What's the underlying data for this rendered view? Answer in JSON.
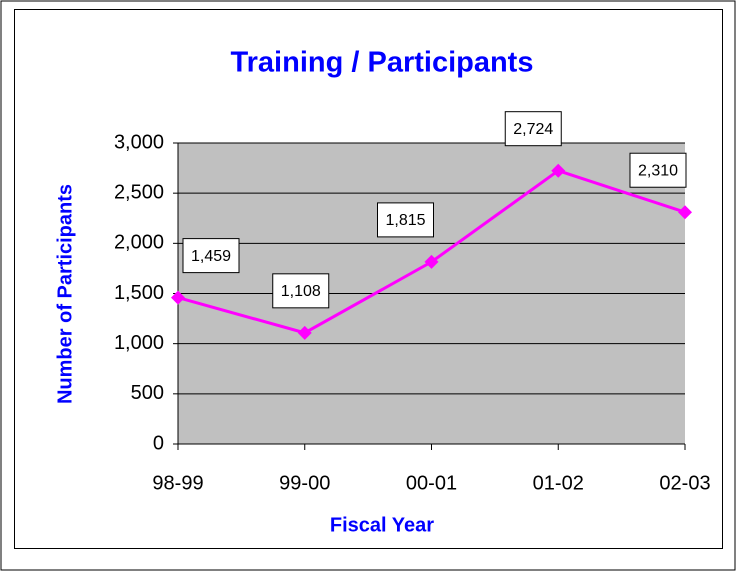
{
  "chart_data": {
    "type": "line",
    "title": "Training / Participants",
    "x_label": "Fiscal Year",
    "y_label": "Number of Participants",
    "categories": [
      "98-99",
      "99-00",
      "00-01",
      "01-02",
      "02-03"
    ],
    "series": [
      {
        "name": "Participants",
        "color": "#ff00ff",
        "values": [
          1459,
          1108,
          1815,
          2724,
          2310
        ],
        "value_labels": [
          "1,459",
          "1,108",
          "1,815",
          "2,724",
          "2,310"
        ]
      }
    ],
    "ylim": [
      0,
      3000
    ],
    "yticks": [
      0,
      500,
      {
        "value": 1000,
        "label": "1,000"
      },
      {
        "value": 1500,
        "label": "1,500"
      },
      {
        "value": 2000,
        "label": "2,000"
      },
      {
        "value": 2500,
        "label": "2,500"
      },
      {
        "value": 3000,
        "label": "3,000"
      }
    ],
    "grid": true,
    "plot_background": "#c0c0c0"
  }
}
